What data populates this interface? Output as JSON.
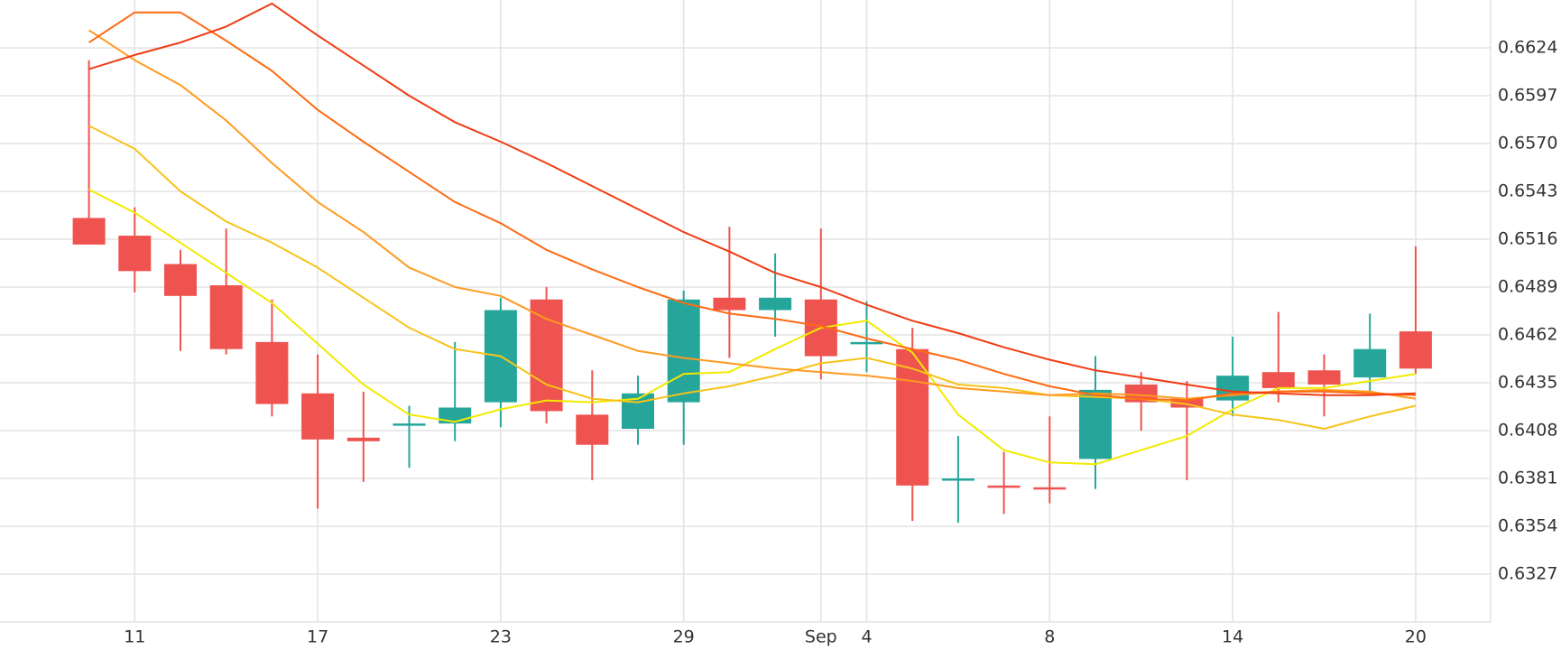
{
  "chart_data": {
    "type": "candlestick",
    "categories": [
      null,
      "11",
      null,
      null,
      null,
      "17",
      null,
      null,
      null,
      "23",
      null,
      null,
      null,
      "29",
      null,
      null,
      "Sep",
      "4",
      null,
      null,
      null,
      "8",
      null,
      null,
      null,
      "14",
      null,
      null,
      null,
      "20"
    ],
    "open": [
      0.6528,
      0.6518,
      0.6502,
      0.649,
      0.6458,
      0.6429,
      0.6404,
      0.6412,
      0.6412,
      0.6424,
      0.6482,
      0.6417,
      0.6409,
      0.6424,
      0.6483,
      0.6476,
      0.6482,
      0.6458,
      0.6454,
      0.6381,
      0.6377,
      0.6376,
      0.6392,
      0.6434,
      0.6426,
      0.6425,
      0.6441,
      0.6442,
      0.6438,
      0.6464
    ],
    "high": [
      0.6617,
      0.6534,
      0.651,
      0.6522,
      0.6482,
      0.6451,
      0.643,
      0.6422,
      0.6458,
      0.6483,
      0.6489,
      0.6442,
      0.6439,
      0.6487,
      0.6523,
      0.6508,
      0.6522,
      0.6481,
      0.6466,
      0.6405,
      0.6396,
      0.6416,
      0.645,
      0.6441,
      0.6436,
      0.6461,
      0.6475,
      0.6451,
      0.6474,
      0.6512
    ],
    "low": [
      0.6513,
      0.6486,
      0.6453,
      0.6451,
      0.6416,
      0.6364,
      0.6379,
      0.6387,
      0.6402,
      0.641,
      0.6412,
      0.638,
      0.64,
      0.64,
      0.6449,
      0.6461,
      0.6437,
      0.6441,
      0.6357,
      0.6356,
      0.6361,
      0.6367,
      0.6375,
      0.6408,
      0.638,
      0.6416,
      0.6424,
      0.6416,
      0.6429,
      0.644
    ],
    "close": [
      0.6513,
      0.6498,
      0.6484,
      0.6454,
      0.6423,
      0.6403,
      0.6402,
      0.6412,
      0.6421,
      0.6476,
      0.6419,
      0.64,
      0.6429,
      0.6482,
      0.6476,
      0.6483,
      0.645,
      0.6458,
      0.6377,
      0.6381,
      0.6376,
      0.6375,
      0.6431,
      0.6424,
      0.6421,
      0.6439,
      0.6432,
      0.6434,
      0.6454,
      0.6443
    ],
    "up_color": "#26a69a",
    "down_color": "#ef5350",
    "series": [
      {
        "color": "#f2ea00",
        "values": [
          0.6544,
          0.6531,
          0.6514,
          0.6497,
          0.648,
          0.6457,
          0.6434,
          0.6417,
          0.6413,
          0.642,
          0.6425,
          0.6424,
          0.6426,
          0.644,
          0.6441,
          0.6454,
          0.6466,
          0.647,
          0.6452,
          0.6417,
          0.6397,
          0.639,
          0.6389,
          0.6397,
          0.6405,
          0.642,
          0.6432,
          0.6432,
          0.6436,
          0.644
        ]
      },
      {
        "color": "#f7c31a",
        "values": [
          0.658,
          0.6567,
          0.6543,
          0.6526,
          0.6514,
          0.65,
          0.6483,
          0.6466,
          0.6454,
          0.645,
          0.6434,
          0.6426,
          0.6424,
          0.6429,
          0.6433,
          0.6439,
          0.6446,
          0.6449,
          0.6443,
          0.6434,
          0.6432,
          0.6428,
          0.6427,
          0.6426,
          0.6423,
          0.6417,
          0.6414,
          0.6409,
          0.6416,
          0.6422
        ]
      },
      {
        "color": "#ff9a1f",
        "values": [
          0.6634,
          0.6617,
          0.6603,
          0.6583,
          0.6559,
          0.6537,
          0.652,
          0.65,
          0.6489,
          0.6484,
          0.6471,
          0.6462,
          0.6453,
          0.6449,
          0.6446,
          0.6443,
          0.6441,
          0.6439,
          0.6436,
          0.6432,
          0.643,
          0.6428,
          0.6429,
          0.6428,
          0.6426,
          0.6428,
          0.643,
          0.6431,
          0.643,
          0.6426
        ]
      },
      {
        "color": "#ff6a13",
        "values": [
          0.6627,
          0.6644,
          0.6644,
          0.6628,
          0.6611,
          0.6589,
          0.6571,
          0.6554,
          0.6537,
          0.6525,
          0.651,
          0.6499,
          0.6489,
          0.648,
          0.6474,
          0.6471,
          0.6467,
          0.646,
          0.6454,
          0.6448,
          0.644,
          0.6433,
          0.6428,
          0.6426,
          0.6425,
          0.6429,
          0.643,
          0.643,
          0.6429,
          0.6428
        ]
      },
      {
        "color": "#f03c14",
        "values": [
          0.6612,
          0.662,
          0.6627,
          0.6636,
          0.6649,
          0.6631,
          0.6614,
          0.6597,
          0.6582,
          0.6571,
          0.6559,
          0.6546,
          0.6533,
          0.652,
          0.6509,
          0.6497,
          0.6489,
          0.6479,
          0.647,
          0.6463,
          0.6455,
          0.6448,
          0.6442,
          0.6438,
          0.6434,
          0.643,
          0.6429,
          0.6428,
          0.6428,
          0.6429
        ]
      }
    ],
    "ylim": [
      0.63,
      0.6651
    ],
    "yticks": [
      0.6624,
      0.6597,
      {
        "value": 0.657,
        "label": "0.6570"
      },
      0.6543,
      0.6516,
      0.6489,
      0.6462,
      0.6435,
      0.6408,
      0.6381,
      0.6354,
      0.6327
    ],
    "grid": true
  }
}
